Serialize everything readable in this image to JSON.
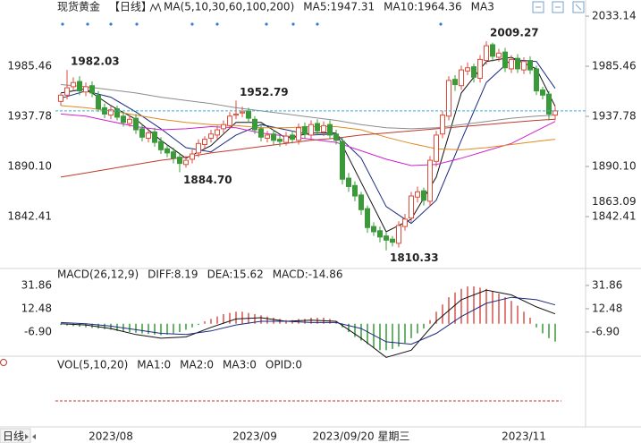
{
  "chart_data": [
    {
      "type": "candlestick",
      "title": "现货黄金",
      "period": "【日线】",
      "indicator": "MA(5,10,30,60,100,200)",
      "categories": [
        null,
        null,
        null,
        null,
        null,
        null,
        null,
        null,
        "2023/08",
        null,
        null,
        null,
        null,
        null,
        null,
        null,
        null,
        null,
        null,
        null,
        null,
        null,
        null,
        null,
        null,
        null,
        null,
        null,
        null,
        null,
        null,
        "2023/09",
        null,
        null,
        null,
        null,
        null,
        null,
        null,
        null,
        null,
        null,
        null,
        null,
        null,
        null,
        null,
        null,
        null,
        null,
        null,
        null,
        null,
        null,
        null,
        null,
        null,
        null,
        null,
        null,
        null,
        null,
        null,
        null,
        null,
        null,
        null,
        null,
        null,
        null,
        null,
        null,
        null,
        null,
        "2023/11",
        null,
        null,
        null,
        null,
        null
      ],
      "cursor": {
        "label": "2023/09/20 星期三",
        "index": 48,
        "color": "#e8a13a"
      },
      "open": [
        1952,
        1958,
        1966,
        1971,
        1961,
        1967,
        1958,
        1946,
        1939,
        1945,
        1938,
        1931,
        1936,
        1926,
        1917,
        1923,
        1914,
        1907,
        1904,
        1899,
        1892,
        1897,
        1903,
        1911,
        1917,
        1920,
        1926,
        1929,
        1939,
        1941,
        1943,
        1935,
        1926,
        1917,
        1921,
        1916,
        1913,
        1920,
        1915,
        1928,
        1920,
        1931,
        1923,
        1930,
        1921,
        1914,
        1879,
        1872,
        1863,
        1850,
        1833,
        1829,
        1824,
        1821,
        1817,
        1833,
        1841,
        1861,
        1867,
        1857,
        1895,
        1921,
        1938,
        1973,
        1967,
        1981,
        1985,
        1974,
        1991,
        2006,
        1994,
        1999,
        1983,
        1993,
        1982,
        1991,
        1983,
        1963,
        1959,
        1939
      ],
      "high": [
        1960,
        1982.03,
        1975,
        1976,
        1970,
        1971,
        1962,
        1950,
        1948,
        1948,
        1942,
        1939,
        1940,
        1930,
        1926,
        1927,
        1918,
        1911,
        1908,
        1903,
        1900,
        1906,
        1916,
        1919,
        1925,
        1929,
        1934,
        1942,
        1952.79,
        1947,
        1946,
        1938,
        1930,
        1924,
        1925,
        1920,
        1923,
        1924,
        1931,
        1932,
        1934,
        1935,
        1933,
        1934,
        1925,
        1918,
        1884,
        1876,
        1866,
        1853,
        1837,
        1833,
        1828,
        1824,
        1838,
        1845,
        1866,
        1871,
        1870,
        1900,
        1924,
        1943,
        1976,
        1977,
        1986,
        1989,
        1988,
        1996,
        2009.27,
        2008,
        2002,
        2003,
        1996,
        1997,
        1994,
        1995,
        1986,
        1966,
        1962,
        1947
      ],
      "low": [
        1948,
        1954,
        1962,
        1958,
        1957,
        1956,
        1942,
        1936,
        1935,
        1934,
        1928,
        1928,
        1921,
        1914,
        1913,
        1909,
        1902,
        1899,
        1893,
        1884.7,
        1889,
        1893,
        1899,
        1907,
        1913,
        1916,
        1922,
        1926,
        1935,
        1937,
        1932,
        1921,
        1914,
        1913,
        1911,
        1909,
        1910,
        1912,
        1911,
        1917,
        1916,
        1920,
        1919,
        1916,
        1911,
        1873,
        1866,
        1857,
        1844,
        1827,
        1824,
        1818,
        1810.33,
        1814,
        1813,
        1829,
        1837,
        1856,
        1853,
        1852,
        1890,
        1917,
        1934,
        1962,
        1963,
        1977,
        1970,
        1970,
        1987,
        1990,
        1990,
        1980,
        1979,
        1979,
        1978,
        1978,
        1958,
        1954,
        1934,
        1934
      ],
      "close": [
        1958,
        1965,
        1970,
        1962,
        1966,
        1960,
        1945,
        1940,
        1944,
        1937,
        1932,
        1935,
        1925,
        1918,
        1922,
        1913,
        1906,
        1903,
        1898,
        1893,
        1896,
        1902,
        1912,
        1916,
        1921,
        1925,
        1930,
        1938,
        1940,
        1942,
        1936,
        1925,
        1918,
        1920,
        1915,
        1914,
        1919,
        1916,
        1927,
        1921,
        1930,
        1924,
        1929,
        1920,
        1915,
        1878,
        1871,
        1862,
        1849,
        1832,
        1828,
        1823,
        1820,
        1818,
        1834,
        1840,
        1862,
        1866,
        1858,
        1896,
        1920,
        1939,
        1972,
        1968,
        1982,
        1984,
        1975,
        1992,
        2005,
        1995,
        1998,
        1984,
        1992,
        1983,
        1990,
        1982,
        1962,
        1958,
        1940,
        1943
      ],
      "up_color": "#e04b3a",
      "down_color": "#3a9a3a",
      "price_line_color": "#3ab0d0",
      "ylim": [
        1795.6,
        2040.0
      ],
      "yticks": [
        2033.14,
        1985.46,
        1937.78,
        {
          "value": 1890.1,
          "label": "1890.10"
        },
        1842.41
      ],
      "series": [
        {
          "name": "MA5:1947.31",
          "color": "#111111",
          "x": [
            0,
            4,
            8,
            12,
            16,
            20,
            24,
            28,
            32,
            36,
            40,
            44,
            48,
            52,
            56,
            60,
            64,
            68,
            72,
            76,
            79
          ],
          "values": [
            1960,
            1964,
            1948,
            1935,
            1915,
            1898,
            1910,
            1932,
            1932,
            1917,
            1922,
            1922,
            1875,
            1828,
            1840,
            1880,
            1960,
            1990,
            1994,
            1983,
            1947.31
          ]
        },
        {
          "name": "MA10:1964.36",
          "color": "#1a2a80",
          "x": [
            0,
            4,
            8,
            12,
            16,
            20,
            24,
            28,
            32,
            36,
            40,
            44,
            48,
            52,
            56,
            60,
            64,
            68,
            72,
            76,
            79
          ],
          "values": [
            1955,
            1962,
            1956,
            1942,
            1926,
            1908,
            1904,
            1920,
            1930,
            1925,
            1920,
            1921,
            1898,
            1852,
            1836,
            1858,
            1915,
            1970,
            1992,
            1990,
            1964.36
          ]
        },
        {
          "name": "MA3",
          "color": "#d020d0",
          "x": [
            0,
            4,
            8,
            12,
            16,
            20,
            24,
            28,
            32,
            36,
            40,
            44,
            48,
            52,
            56,
            60,
            64,
            68,
            72,
            76,
            79
          ],
          "values": [
            1940,
            1938,
            1933,
            1928,
            1925,
            1926,
            1928,
            1927,
            1922,
            1919,
            1916,
            1913,
            1905,
            1897,
            1891,
            1892,
            1898,
            1905,
            1912,
            1924,
            1933
          ]
        },
        {
          "color": "#e08a1e",
          "x": [
            0,
            4,
            8,
            12,
            16,
            20,
            24,
            28,
            32,
            36,
            40,
            44,
            48,
            52,
            56,
            60,
            64,
            68,
            72,
            76,
            79
          ],
          "values": [
            1948,
            1946,
            1943,
            1939,
            1935,
            1932,
            1930,
            1929,
            1927,
            1927,
            1928,
            1928,
            1925,
            1918,
            1912,
            1907,
            1906,
            1908,
            1911,
            1914,
            1916
          ]
        },
        {
          "color": "#c0392b",
          "x": [
            0,
            4,
            8,
            12,
            16,
            20,
            24,
            28,
            32,
            36,
            40,
            44,
            48,
            52,
            56,
            60,
            64,
            68,
            72,
            76,
            79
          ],
          "values": [
            1880,
            1884,
            1888,
            1892,
            1896,
            1899,
            1903,
            1906,
            1909,
            1912,
            1915,
            1917,
            1920,
            1922,
            1924,
            1926,
            1928,
            1930,
            1932,
            1934,
            1935
          ]
        },
        {
          "color": "#8c8c8c",
          "x": [
            0,
            4,
            8,
            12,
            16,
            20,
            24,
            28,
            32,
            36,
            40,
            44,
            48,
            52,
            56,
            60,
            64,
            68,
            72,
            76,
            79
          ],
          "values": [
            1968,
            1966,
            1963,
            1960,
            1956,
            1953,
            1950,
            1946,
            1943,
            1940,
            1937,
            1934,
            1930,
            1927,
            1926,
            1927,
            1930,
            1933,
            1936,
            1938,
            1939
          ]
        }
      ],
      "annotations": [
        {
          "index": 1,
          "field": "high",
          "label": "1982.03"
        },
        {
          "index": 28,
          "field": "high",
          "label": "1952.79"
        },
        {
          "index": 19,
          "field": "low",
          "label": "1884.70"
        },
        {
          "index": 52,
          "field": "low",
          "label": "1810.33"
        },
        {
          "index": 68,
          "field": "high",
          "label": "2009.27"
        }
      ],
      "side_label": {
        "value": 1863.09,
        "color": "#e08a1e"
      }
    },
    {
      "type": "macd",
      "title": "MACD(26,12,9)",
      "ylim": [
        -27,
        40
      ],
      "yticks": [
        31.86,
        12.48,
        {
          "value": -6.9,
          "label": "-6.90"
        }
      ],
      "histogram": {
        "name": "MACD:-14.86",
        "color": "#d020d0",
        "up_color": "#d9534f",
        "down_color": "#3a9a3a",
        "values": [
          -1,
          -1.5,
          -2,
          -2.5,
          -3,
          -3.5,
          -4,
          -4.5,
          -5,
          -6,
          -6.5,
          -7,
          -7.5,
          -8,
          -8.5,
          -9,
          -9.5,
          -9,
          -8,
          -7,
          -5,
          -3,
          -1,
          2,
          4,
          6,
          8,
          9,
          10,
          10,
          9,
          8,
          7,
          6,
          5,
          4,
          3,
          3,
          4,
          4,
          5,
          5,
          5,
          4,
          2,
          -3,
          -7,
          -11,
          -14,
          -17,
          -20,
          -22,
          -22,
          -21,
          -19,
          -16,
          -12,
          -8,
          -4,
          3,
          10,
          16,
          22,
          26,
          29,
          31,
          31,
          30,
          29,
          27,
          25,
          22,
          19,
          15,
          10,
          5,
          -3,
          -8,
          -12,
          -14.86
        ]
      },
      "series": [
        {
          "name": "DIFF:8.19",
          "color": "#111111",
          "x": [
            0,
            4,
            8,
            12,
            16,
            20,
            24,
            28,
            32,
            36,
            40,
            44,
            48,
            52,
            56,
            60,
            64,
            68,
            72,
            76,
            79
          ],
          "values": [
            0,
            -1,
            -4,
            -9,
            -12,
            -11,
            -3,
            4,
            5,
            2,
            3,
            2,
            -12,
            -28,
            -22,
            2,
            20,
            28,
            24,
            14,
            8.19
          ]
        },
        {
          "name": "DEA:15.62",
          "color": "#1a2a80",
          "x": [
            0,
            4,
            8,
            12,
            16,
            20,
            24,
            28,
            32,
            36,
            40,
            44,
            48,
            52,
            56,
            60,
            64,
            68,
            72,
            76,
            79
          ],
          "values": [
            1,
            0,
            -2,
            -5,
            -8,
            -9,
            -6,
            -1,
            2,
            2,
            1,
            1,
            -4,
            -15,
            -17,
            -8,
            6,
            17,
            22,
            20,
            15.62
          ]
        }
      ]
    },
    {
      "type": "volume",
      "title": "VOL(5,10,20)",
      "series": [
        {
          "name": "MA1:0",
          "color": "#1a2a80"
        },
        {
          "name": "MA2:0",
          "color": "#d020d0"
        },
        {
          "name": "MA3:0",
          "color": "#e08a1e"
        },
        {
          "name": "OPID:0",
          "color": "#8c8c8c"
        }
      ]
    }
  ],
  "footer": {
    "period_button": "日线"
  }
}
